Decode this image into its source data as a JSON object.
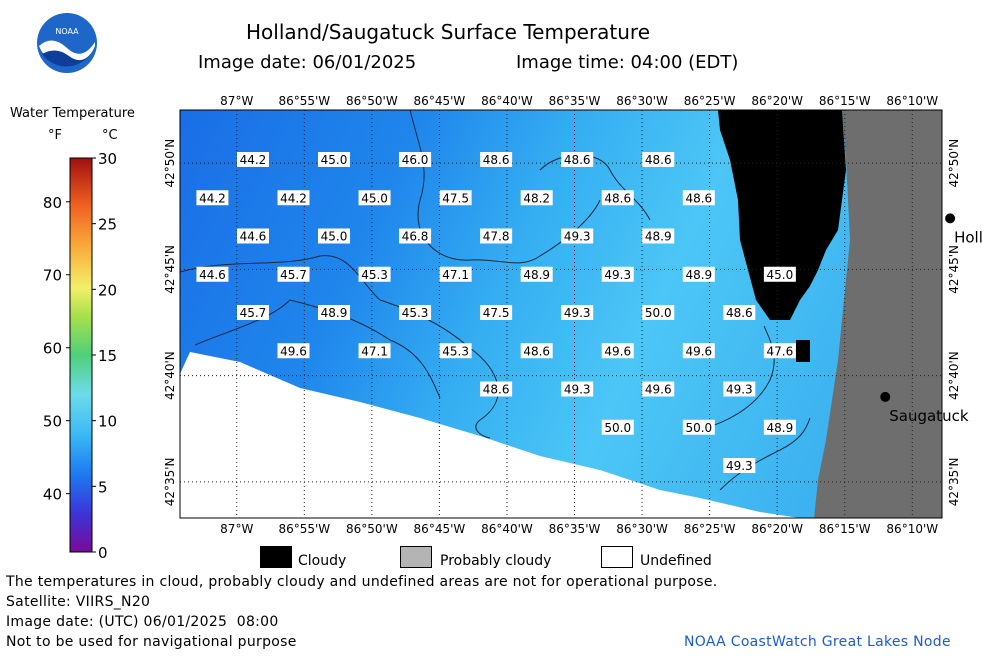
{
  "header": {
    "title": "Holland/Saugatuck Surface Temperature",
    "image_date": "Image date: 06/01/2025",
    "image_time": "Image time: 04:00 (EDT)",
    "logo_text": "NOAA"
  },
  "colorbar": {
    "title": "Water Temperature",
    "unit_f": "°F",
    "unit_c": "°C",
    "f_ticks": [
      "80",
      "70",
      "60",
      "50",
      "40"
    ],
    "c_ticks": [
      "30",
      "25",
      "20",
      "15",
      "10",
      "5",
      "0"
    ],
    "c_range": [
      0,
      30
    ],
    "f_range": [
      32,
      86
    ]
  },
  "map": {
    "lon_labels": [
      "87°W",
      "86°55'W",
      "86°50'W",
      "86°45'W",
      "86°40'W",
      "86°35'W",
      "86°30'W",
      "86°25'W",
      "86°20'W",
      "86°15'W",
      "86°10'W"
    ],
    "lat_labels": [
      "42°50'N",
      "42°45'N",
      "42°40'N",
      "42°35'N"
    ],
    "cities": [
      {
        "name": "Holland",
        "lon": -86.12,
        "lat": 42.79
      },
      {
        "name": "Saugatuck",
        "lon": -86.2,
        "lat": 42.65
      }
    ],
    "temperatures_f": [
      {
        "value": "44.2",
        "lon": -86.98,
        "lat": 42.835
      },
      {
        "value": "45.0",
        "lon": -86.88,
        "lat": 42.835
      },
      {
        "value": "46.0",
        "lon": -86.78,
        "lat": 42.835
      },
      {
        "value": "48.6",
        "lon": -86.68,
        "lat": 42.835
      },
      {
        "value": "48.6",
        "lon": -86.58,
        "lat": 42.835
      },
      {
        "value": "48.6",
        "lon": -86.48,
        "lat": 42.835
      },
      {
        "value": "44.2",
        "lon": -87.03,
        "lat": 42.805
      },
      {
        "value": "44.2",
        "lon": -86.93,
        "lat": 42.805
      },
      {
        "value": "45.0",
        "lon": -86.83,
        "lat": 42.805
      },
      {
        "value": "47.5",
        "lon": -86.73,
        "lat": 42.805
      },
      {
        "value": "48.2",
        "lon": -86.63,
        "lat": 42.805
      },
      {
        "value": "48.6",
        "lon": -86.53,
        "lat": 42.805
      },
      {
        "value": "48.6",
        "lon": -86.43,
        "lat": 42.805
      },
      {
        "value": "44.6",
        "lon": -86.98,
        "lat": 42.775
      },
      {
        "value": "45.0",
        "lon": -86.88,
        "lat": 42.775
      },
      {
        "value": "46.8",
        "lon": -86.78,
        "lat": 42.775
      },
      {
        "value": "47.8",
        "lon": -86.68,
        "lat": 42.775
      },
      {
        "value": "49.3",
        "lon": -86.58,
        "lat": 42.775
      },
      {
        "value": "48.9",
        "lon": -86.48,
        "lat": 42.775
      },
      {
        "value": "44.6",
        "lon": -87.03,
        "lat": 42.745
      },
      {
        "value": "45.7",
        "lon": -86.93,
        "lat": 42.745
      },
      {
        "value": "45.3",
        "lon": -86.83,
        "lat": 42.745
      },
      {
        "value": "47.1",
        "lon": -86.73,
        "lat": 42.745
      },
      {
        "value": "48.9",
        "lon": -86.63,
        "lat": 42.745
      },
      {
        "value": "49.3",
        "lon": -86.53,
        "lat": 42.745
      },
      {
        "value": "48.9",
        "lon": -86.43,
        "lat": 42.745
      },
      {
        "value": "45.0",
        "lon": -86.33,
        "lat": 42.745
      },
      {
        "value": "45.7",
        "lon": -86.98,
        "lat": 42.715
      },
      {
        "value": "48.9",
        "lon": -86.88,
        "lat": 42.715
      },
      {
        "value": "45.3",
        "lon": -86.78,
        "lat": 42.715
      },
      {
        "value": "47.5",
        "lon": -86.68,
        "lat": 42.715
      },
      {
        "value": "49.3",
        "lon": -86.58,
        "lat": 42.715
      },
      {
        "value": "50.0",
        "lon": -86.48,
        "lat": 42.715
      },
      {
        "value": "48.6",
        "lon": -86.38,
        "lat": 42.715
      },
      {
        "value": "49.6",
        "lon": -86.93,
        "lat": 42.685
      },
      {
        "value": "47.1",
        "lon": -86.83,
        "lat": 42.685
      },
      {
        "value": "45.3",
        "lon": -86.73,
        "lat": 42.685
      },
      {
        "value": "48.6",
        "lon": -86.63,
        "lat": 42.685
      },
      {
        "value": "49.6",
        "lon": -86.53,
        "lat": 42.685
      },
      {
        "value": "49.6",
        "lon": -86.43,
        "lat": 42.685
      },
      {
        "value": "47.6",
        "lon": -86.33,
        "lat": 42.685
      },
      {
        "value": "48.6",
        "lon": -86.68,
        "lat": 42.655
      },
      {
        "value": "49.3",
        "lon": -86.58,
        "lat": 42.655
      },
      {
        "value": "49.6",
        "lon": -86.48,
        "lat": 42.655
      },
      {
        "value": "49.3",
        "lon": -86.38,
        "lat": 42.655
      },
      {
        "value": "50.0",
        "lon": -86.53,
        "lat": 42.625
      },
      {
        "value": "50.0",
        "lon": -86.43,
        "lat": 42.625
      },
      {
        "value": "48.9",
        "lon": -86.33,
        "lat": 42.625
      },
      {
        "value": "49.3",
        "lon": -86.38,
        "lat": 42.595
      }
    ]
  },
  "legend": {
    "cloudy": "Cloudy",
    "probably_cloudy": "Probably cloudy",
    "undefined": "Undefined",
    "colors": {
      "cloudy": "#000000",
      "probably_cloudy": "#b4b4b4",
      "undefined": "#ffffff",
      "land": "#6e6e6e"
    }
  },
  "footer": {
    "disclaimer": "The temperatures in cloud, probably cloudy and undefined areas are not for operational purpose.",
    "satellite": "Satellite: VIIRS_N20",
    "utc_date": "Image date: (UTC) 06/01/2025  08:00",
    "nav_warning": "Not to be used for navigational purpose",
    "credit": "NOAA CoastWatch Great Lakes Node"
  }
}
